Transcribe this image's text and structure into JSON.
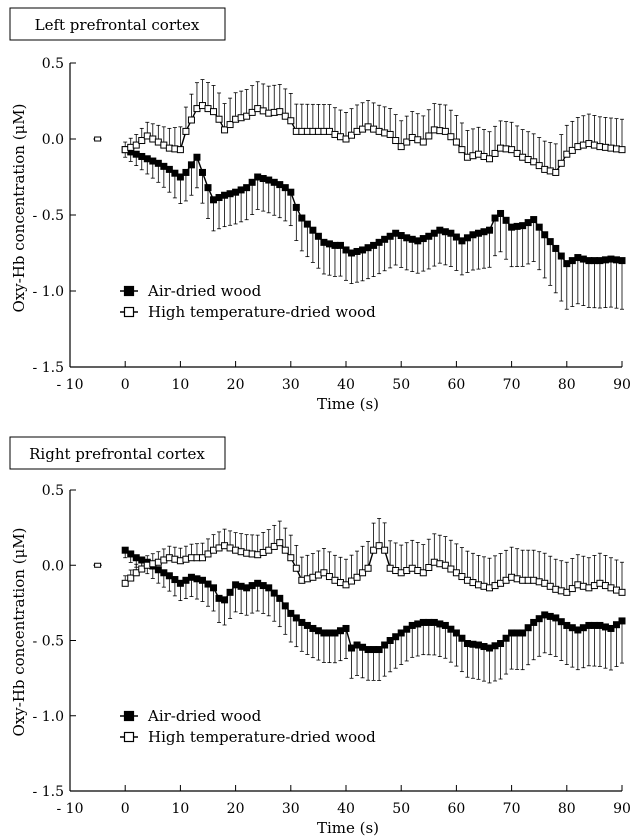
{
  "chart_data": [
    {
      "type": "line",
      "title": "Left prefrontal cortex",
      "xlabel": "Time (s)",
      "ylabel": "Oxy-Hb concentration (μM)",
      "xlim": [
        -10,
        90
      ],
      "ylim": [
        -1.5,
        0.5
      ],
      "x_ticks": [
        -10,
        0,
        10,
        20,
        30,
        40,
        50,
        60,
        70,
        80,
        90
      ],
      "x_tick_labels": [
        "- 10",
        "0",
        "10",
        "20",
        "30",
        "40",
        "50",
        "60",
        "70",
        "80",
        "90"
      ],
      "y_ticks": [
        0.5,
        0.0,
        -0.5,
        -1.0,
        -1.5
      ],
      "y_tick_labels": [
        "0.5",
        "0.0",
        "- 0.5",
        "- 1.0",
        "- 1.5"
      ],
      "legend": "bottom-left",
      "grid": false,
      "baseline": {
        "x": -5,
        "y": 0
      },
      "series": [
        {
          "name": "Air-dried wood",
          "marker": "filled-square",
          "anchors": [
            [
              0,
              -0.07
            ],
            [
              2,
              -0.1
            ],
            [
              4,
              -0.13
            ],
            [
              6,
              -0.16
            ],
            [
              8,
              -0.2
            ],
            [
              10,
              -0.25
            ],
            [
              11,
              -0.22
            ],
            [
              12,
              -0.17
            ],
            [
              13,
              -0.12
            ],
            [
              14,
              -0.22
            ],
            [
              15,
              -0.32
            ],
            [
              16,
              -0.4
            ],
            [
              18,
              -0.37
            ],
            [
              20,
              -0.35
            ],
            [
              22,
              -0.32
            ],
            [
              24,
              -0.25
            ],
            [
              26,
              -0.27
            ],
            [
              28,
              -0.3
            ],
            [
              29,
              -0.32
            ],
            [
              30,
              -0.35
            ],
            [
              31,
              -0.45
            ],
            [
              32,
              -0.52
            ],
            [
              34,
              -0.6
            ],
            [
              36,
              -0.68
            ],
            [
              38,
              -0.7
            ],
            [
              39,
              -0.7
            ],
            [
              40,
              -0.73
            ],
            [
              41,
              -0.75
            ],
            [
              43,
              -0.73
            ],
            [
              45,
              -0.7
            ],
            [
              47,
              -0.66
            ],
            [
              49,
              -0.62
            ],
            [
              51,
              -0.65
            ],
            [
              53,
              -0.67
            ],
            [
              55,
              -0.64
            ],
            [
              57,
              -0.6
            ],
            [
              59,
              -0.62
            ],
            [
              61,
              -0.67
            ],
            [
              63,
              -0.63
            ],
            [
              66,
              -0.6
            ],
            [
              67,
              -0.52
            ],
            [
              68,
              -0.49
            ],
            [
              70,
              -0.58
            ],
            [
              72,
              -0.57
            ],
            [
              74,
              -0.53
            ],
            [
              76,
              -0.63
            ],
            [
              78,
              -0.72
            ],
            [
              80,
              -0.82
            ],
            [
              82,
              -0.78
            ],
            [
              84,
              -0.8
            ],
            [
              86,
              -0.8
            ],
            [
              88,
              -0.79
            ],
            [
              90,
              -0.8
            ]
          ],
          "error_anchors": [
            [
              0,
              0.05
            ],
            [
              12,
              0.2
            ],
            [
              30,
              0.22
            ],
            [
              40,
              0.2
            ],
            [
              60,
              0.22
            ],
            [
              80,
              0.3
            ],
            [
              90,
              0.32
            ]
          ]
        },
        {
          "name": "High temperature-dried wood",
          "marker": "open-square",
          "anchors": [
            [
              0,
              -0.07
            ],
            [
              2,
              -0.04
            ],
            [
              4,
              0.02
            ],
            [
              6,
              -0.02
            ],
            [
              8,
              -0.06
            ],
            [
              10,
              -0.07
            ],
            [
              11,
              0.05
            ],
            [
              13,
              0.2
            ],
            [
              14,
              0.22
            ],
            [
              16,
              0.18
            ],
            [
              17,
              0.13
            ],
            [
              18,
              0.06
            ],
            [
              20,
              0.13
            ],
            [
              22,
              0.15
            ],
            [
              24,
              0.2
            ],
            [
              26,
              0.17
            ],
            [
              28,
              0.18
            ],
            [
              30,
              0.12
            ],
            [
              31,
              0.05
            ],
            [
              33,
              0.05
            ],
            [
              35,
              0.05
            ],
            [
              37,
              0.05
            ],
            [
              38,
              0.03
            ],
            [
              40,
              0.0
            ],
            [
              42,
              0.05
            ],
            [
              44,
              0.08
            ],
            [
              46,
              0.05
            ],
            [
              48,
              0.03
            ],
            [
              50,
              -0.05
            ],
            [
              52,
              0.01
            ],
            [
              54,
              -0.02
            ],
            [
              56,
              0.06
            ],
            [
              58,
              0.05
            ],
            [
              60,
              -0.02
            ],
            [
              62,
              -0.12
            ],
            [
              64,
              -0.1
            ],
            [
              66,
              -0.13
            ],
            [
              68,
              -0.06
            ],
            [
              70,
              -0.07
            ],
            [
              72,
              -0.12
            ],
            [
              74,
              -0.15
            ],
            [
              76,
              -0.2
            ],
            [
              78,
              -0.22
            ],
            [
              80,
              -0.1
            ],
            [
              82,
              -0.05
            ],
            [
              84,
              -0.03
            ],
            [
              86,
              -0.05
            ],
            [
              88,
              -0.06
            ],
            [
              90,
              -0.07
            ]
          ],
          "error_anchors": [
            [
              0,
              0.05
            ],
            [
              12,
              0.17
            ],
            [
              30,
              0.18
            ],
            [
              50,
              0.17
            ],
            [
              70,
              0.18
            ],
            [
              90,
              0.2
            ]
          ]
        }
      ]
    },
    {
      "type": "line",
      "title": "Right prefrontal cortex",
      "xlabel": "Time (s)",
      "ylabel": "Oxy-Hb concentration (μM)",
      "xlim": [
        -10,
        90
      ],
      "ylim": [
        -1.5,
        0.5
      ],
      "x_ticks": [
        -10,
        0,
        10,
        20,
        30,
        40,
        50,
        60,
        70,
        80,
        90
      ],
      "x_tick_labels": [
        "- 10",
        "0",
        "10",
        "20",
        "30",
        "40",
        "50",
        "60",
        "70",
        "80",
        "90"
      ],
      "y_ticks": [
        0.5,
        0.0,
        -0.5,
        -1.0,
        -1.5
      ],
      "y_tick_labels": [
        "0.5",
        "0.0",
        "- 0.5",
        "- 1.0",
        "- 1.5"
      ],
      "legend": "bottom-left",
      "grid": false,
      "baseline": {
        "x": -5,
        "y": 0
      },
      "series": [
        {
          "name": "Air-dried wood",
          "marker": "filled-square",
          "anchors": [
            [
              0,
              0.1
            ],
            [
              2,
              0.05
            ],
            [
              4,
              0.02
            ],
            [
              6,
              -0.03
            ],
            [
              8,
              -0.07
            ],
            [
              10,
              -0.12
            ],
            [
              12,
              -0.08
            ],
            [
              14,
              -0.1
            ],
            [
              16,
              -0.15
            ],
            [
              17,
              -0.22
            ],
            [
              18,
              -0.23
            ],
            [
              19,
              -0.18
            ],
            [
              20,
              -0.13
            ],
            [
              22,
              -0.15
            ],
            [
              24,
              -0.12
            ],
            [
              26,
              -0.15
            ],
            [
              28,
              -0.22
            ],
            [
              30,
              -0.32
            ],
            [
              32,
              -0.38
            ],
            [
              34,
              -0.42
            ],
            [
              36,
              -0.45
            ],
            [
              38,
              -0.45
            ],
            [
              40,
              -0.42
            ],
            [
              41,
              -0.55
            ],
            [
              42,
              -0.53
            ],
            [
              44,
              -0.56
            ],
            [
              46,
              -0.56
            ],
            [
              48,
              -0.5
            ],
            [
              50,
              -0.45
            ],
            [
              52,
              -0.4
            ],
            [
              54,
              -0.38
            ],
            [
              56,
              -0.38
            ],
            [
              58,
              -0.4
            ],
            [
              60,
              -0.45
            ],
            [
              62,
              -0.52
            ],
            [
              64,
              -0.53
            ],
            [
              66,
              -0.55
            ],
            [
              68,
              -0.52
            ],
            [
              70,
              -0.45
            ],
            [
              72,
              -0.45
            ],
            [
              74,
              -0.38
            ],
            [
              76,
              -0.33
            ],
            [
              78,
              -0.35
            ],
            [
              80,
              -0.4
            ],
            [
              82,
              -0.43
            ],
            [
              84,
              -0.4
            ],
            [
              86,
              -0.4
            ],
            [
              88,
              -0.42
            ],
            [
              90,
              -0.37
            ]
          ],
          "error_anchors": [
            [
              0,
              0.05
            ],
            [
              20,
              0.18
            ],
            [
              40,
              0.2
            ],
            [
              60,
              0.22
            ],
            [
              90,
              0.28
            ]
          ]
        },
        {
          "name": "High temperature-dried wood",
          "marker": "open-square",
          "anchors": [
            [
              0,
              -0.12
            ],
            [
              2,
              -0.05
            ],
            [
              4,
              0.0
            ],
            [
              6,
              0.02
            ],
            [
              8,
              0.05
            ],
            [
              10,
              0.03
            ],
            [
              12,
              0.05
            ],
            [
              14,
              0.05
            ],
            [
              16,
              0.1
            ],
            [
              18,
              0.13
            ],
            [
              20,
              0.1
            ],
            [
              22,
              0.08
            ],
            [
              24,
              0.07
            ],
            [
              26,
              0.1
            ],
            [
              28,
              0.15
            ],
            [
              30,
              0.05
            ],
            [
              31,
              -0.02
            ],
            [
              32,
              -0.1
            ],
            [
              34,
              -0.08
            ],
            [
              36,
              -0.05
            ],
            [
              38,
              -0.1
            ],
            [
              40,
              -0.13
            ],
            [
              42,
              -0.08
            ],
            [
              44,
              -0.02
            ],
            [
              45,
              0.1
            ],
            [
              46,
              0.13
            ],
            [
              47,
              0.1
            ],
            [
              48,
              -0.02
            ],
            [
              50,
              -0.05
            ],
            [
              52,
              -0.02
            ],
            [
              54,
              -0.05
            ],
            [
              56,
              0.02
            ],
            [
              58,
              0.0
            ],
            [
              60,
              -0.05
            ],
            [
              62,
              -0.1
            ],
            [
              64,
              -0.13
            ],
            [
              66,
              -0.15
            ],
            [
              68,
              -0.12
            ],
            [
              70,
              -0.08
            ],
            [
              72,
              -0.1
            ],
            [
              74,
              -0.1
            ],
            [
              76,
              -0.12
            ],
            [
              78,
              -0.16
            ],
            [
              80,
              -0.18
            ],
            [
              82,
              -0.13
            ],
            [
              84,
              -0.15
            ],
            [
              86,
              -0.12
            ],
            [
              88,
              -0.15
            ],
            [
              90,
              -0.18
            ]
          ],
          "error_anchors": [
            [
              0,
              0.05
            ],
            [
              30,
              0.15
            ],
            [
              45,
              0.18
            ],
            [
              70,
              0.2
            ],
            [
              90,
              0.2
            ]
          ]
        }
      ]
    }
  ]
}
